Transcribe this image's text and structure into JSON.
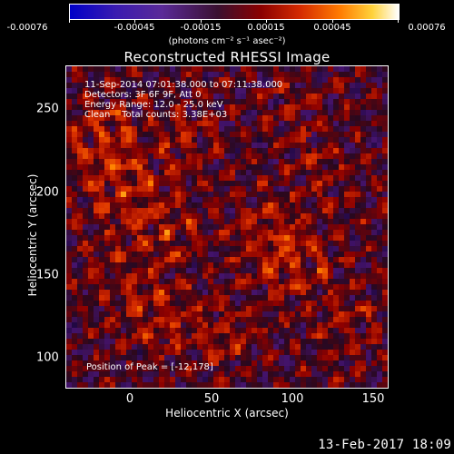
{
  "colorbar": {
    "ticks": [
      "-0.00076",
      "-0.00045",
      "-0.00015",
      "0.00015",
      "0.00045",
      "0.00076"
    ],
    "units": "(photons cm⁻² s⁻¹ asec⁻²)"
  },
  "title": "Reconstructed RHESSI Image",
  "info": {
    "line1": "11-Sep-2014 07:01:38.000 to 07:11:38.000",
    "line2": "Detectors: 3F 6F 9F, Att 0",
    "line3": "Energy Range: 12.0 - 25.0 keV",
    "line4": "Clean    Total counts: 3.38E+03"
  },
  "peak": "Position of Peak = [-12,178]",
  "axes": {
    "xlabel": "Heliocentric X (arcsec)",
    "ylabel": "Heliocentric Y (arcsec)",
    "xticks": [
      "0",
      "50",
      "100",
      "150"
    ],
    "yticks": [
      "250",
      "200",
      "150",
      "100"
    ]
  },
  "timestamp": "13-Feb-2017 18:09"
}
